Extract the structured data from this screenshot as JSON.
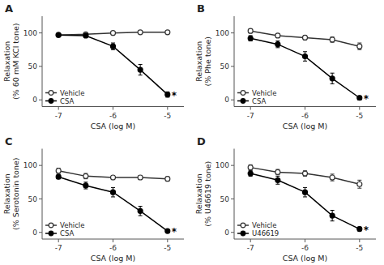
{
  "chart_data": [
    {
      "type": "line",
      "title": "A",
      "xlabel": "CSA (log M)",
      "ylabel": "Relaxation\n(% 60 mM KCl tone)",
      "x": [
        -7,
        -6.5,
        -6,
        -5.5,
        -5
      ],
      "series": [
        {
          "name": "Vehicle",
          "color": "#333333",
          "marker": "open-circle",
          "values": [
            97,
            98,
            100,
            101,
            101
          ],
          "errors": [
            2,
            2,
            2,
            2,
            2
          ]
        },
        {
          "name": "CSA",
          "color": "#000000",
          "marker": "filled-circle",
          "values": [
            97,
            96,
            80,
            45,
            8
          ],
          "errors": [
            2,
            3,
            5,
            8,
            4
          ]
        }
      ],
      "annotations": [
        {
          "text": "*",
          "x": -5,
          "y": 8
        }
      ],
      "xlim": [
        -7.3,
        -4.7
      ],
      "xticks": [
        -7,
        -6,
        -5
      ],
      "ylim": [
        -10,
        125
      ],
      "yticks": [
        0,
        50,
        100
      ],
      "legend": "lower left",
      "grid": false
    },
    {
      "type": "line",
      "title": "B",
      "xlabel": "CSA (log M)",
      "ylabel": "Relaxation\n(% Phe tone)",
      "x": [
        -7,
        -6.5,
        -6,
        -5.5,
        -5
      ],
      "series": [
        {
          "name": "Vehicle",
          "color": "#333333",
          "marker": "open-circle",
          "values": [
            103,
            96,
            93,
            90,
            80
          ],
          "errors": [
            3,
            3,
            3,
            4,
            5
          ]
        },
        {
          "name": "CSA",
          "color": "#000000",
          "marker": "filled-circle",
          "values": [
            92,
            83,
            65,
            32,
            3
          ],
          "errors": [
            4,
            5,
            7,
            8,
            3
          ]
        }
      ],
      "annotations": [
        {
          "text": "*",
          "x": -5,
          "y": 3
        }
      ],
      "xlim": [
        -7.3,
        -4.7
      ],
      "xticks": [
        -7,
        -6,
        -5
      ],
      "ylim": [
        -10,
        125
      ],
      "yticks": [
        0,
        50,
        100
      ],
      "legend": "lower left",
      "grid": false
    },
    {
      "type": "line",
      "title": "C",
      "xlabel": "CSA (log M)",
      "ylabel": "Relaxation\n(% Serotonin tone)",
      "x": [
        -7,
        -6.5,
        -6,
        -5.5,
        -5
      ],
      "series": [
        {
          "name": "Vehicle",
          "color": "#333333",
          "marker": "open-circle",
          "values": [
            92,
            84,
            82,
            82,
            80
          ],
          "errors": [
            4,
            4,
            3,
            3,
            3
          ]
        },
        {
          "name": "CSA",
          "color": "#000000",
          "marker": "filled-circle",
          "values": [
            83,
            70,
            60,
            32,
            2
          ],
          "errors": [
            3,
            5,
            7,
            7,
            2
          ]
        }
      ],
      "annotations": [
        {
          "text": "*",
          "x": -5,
          "y": 2
        }
      ],
      "xlim": [
        -7.3,
        -4.7
      ],
      "xticks": [
        -7,
        -6,
        -5
      ],
      "ylim": [
        -10,
        125
      ],
      "yticks": [
        0,
        50,
        100
      ],
      "legend": "lower left",
      "grid": false
    },
    {
      "type": "line",
      "title": "D",
      "xlabel": "CSA (log M)",
      "ylabel": "Relaxation\n(% U46619 tone)",
      "x": [
        -7,
        -6.5,
        -6,
        -5.5,
        -5
      ],
      "series": [
        {
          "name": "Vehicle",
          "color": "#333333",
          "marker": "open-circle",
          "values": [
            97,
            90,
            88,
            82,
            72
          ],
          "errors": [
            4,
            4,
            4,
            5,
            6
          ]
        },
        {
          "name": "U46619",
          "color": "#000000",
          "marker": "filled-circle",
          "values": [
            88,
            78,
            60,
            25,
            5
          ],
          "errors": [
            4,
            6,
            7,
            8,
            3
          ]
        }
      ],
      "annotations": [
        {
          "text": "*",
          "x": -5,
          "y": 5
        }
      ],
      "xlim": [
        -7.3,
        -4.7
      ],
      "xticks": [
        -7,
        -6,
        -5
      ],
      "ylim": [
        -10,
        125
      ],
      "yticks": [
        0,
        50,
        100
      ],
      "legend": "lower left",
      "grid": false
    }
  ]
}
